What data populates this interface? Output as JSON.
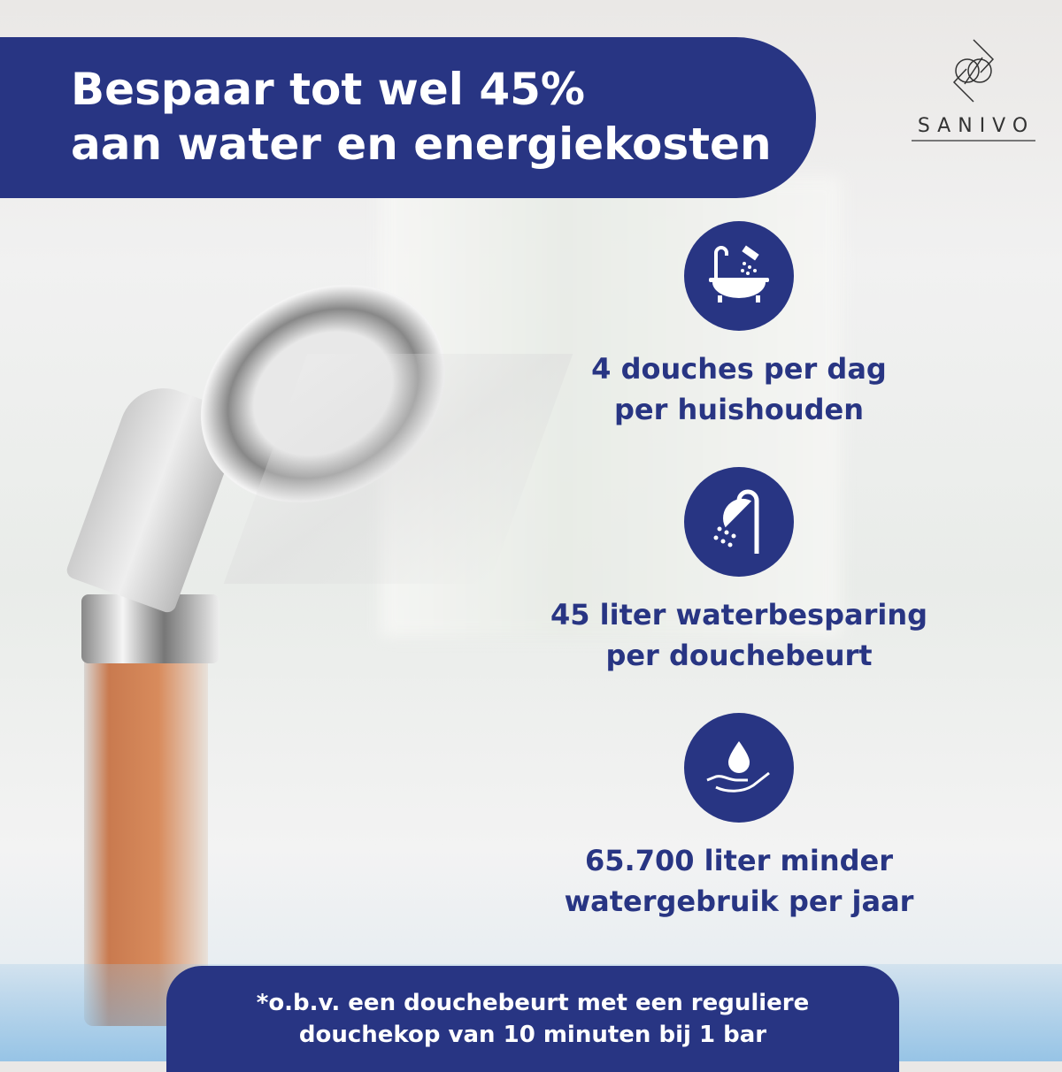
{
  "headline": {
    "line1": "Bespaar tot wel 45%",
    "line2": "aan water en energiekosten"
  },
  "logo": {
    "name": "SANIVO"
  },
  "features": [
    {
      "icon": "bathtub-shower-icon",
      "line1": "4 douches per dag",
      "line2": "per huishouden"
    },
    {
      "icon": "shower-head-icon",
      "line1": "45 liter waterbesparing",
      "line2": "per douchebeurt"
    },
    {
      "icon": "water-drop-hand-icon",
      "line1": "65.700 liter minder",
      "line2": "watergebruik per jaar"
    }
  ],
  "footnote": {
    "line1": "*o.b.v. een douchebeurt met een reguliere",
    "line2": "douchekop van 10 minuten bij 1 bar"
  },
  "colors": {
    "brand": "#283583"
  }
}
